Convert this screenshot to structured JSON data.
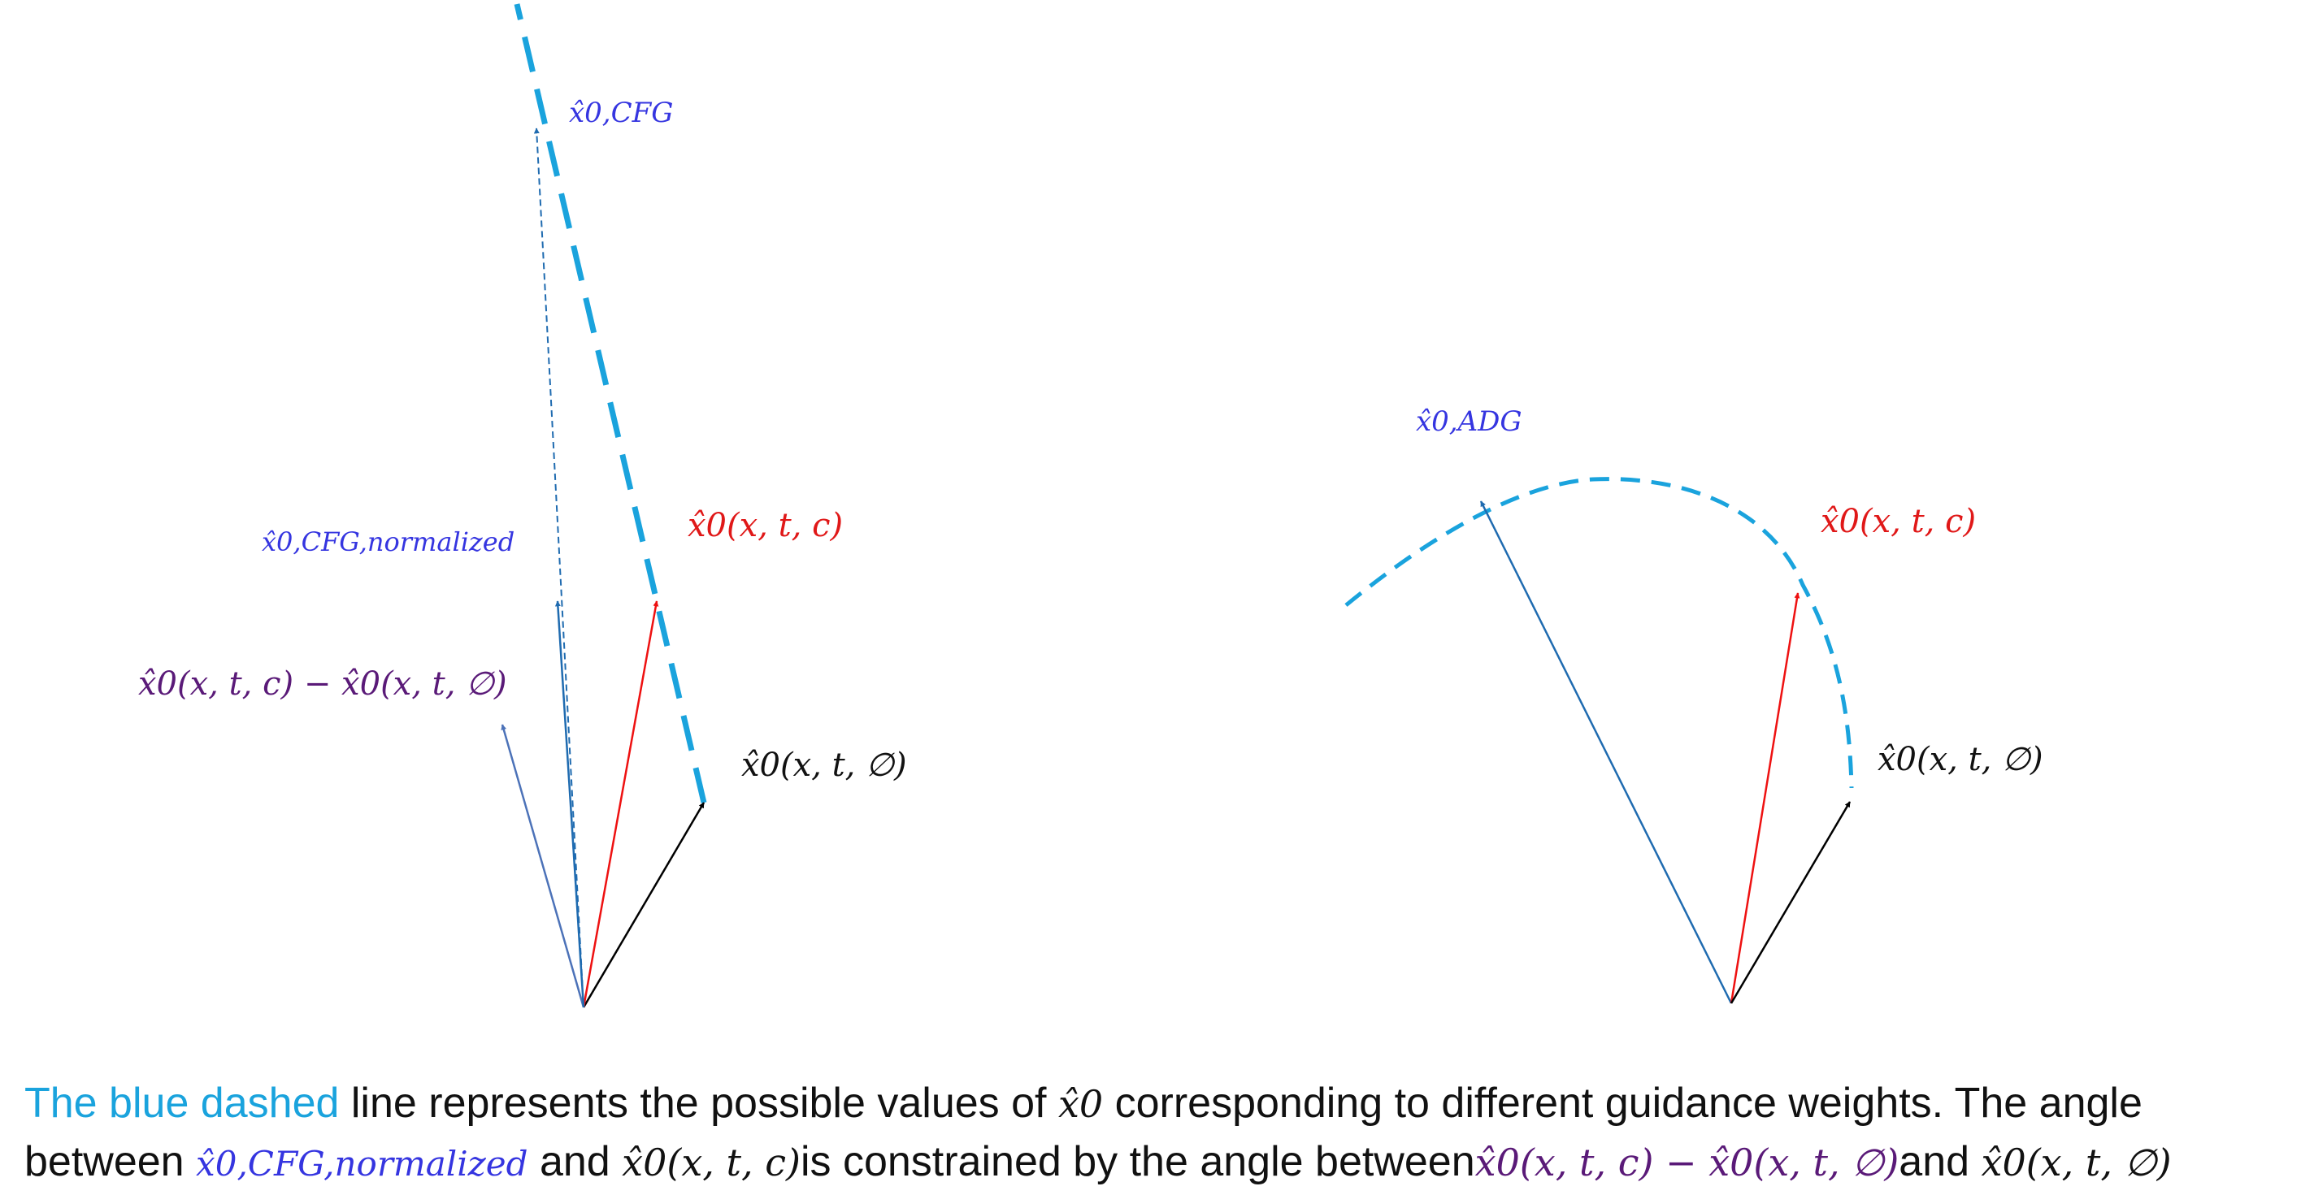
{
  "colors": {
    "cyan_dashed": "#1aa3dd",
    "blue_arrow": "#1f6bb0",
    "red_arrow": "#ee1111",
    "black_arrow": "#000000",
    "purple_arrow": "#4c72b8",
    "label_blue": "#3535e0",
    "label_red": "#e01818",
    "label_purple": "#5a1a78"
  },
  "left_panel": {
    "labels": {
      "cfg": "x̂0,CFG",
      "cfg_normalized": "x̂0,CFG,normalized",
      "conditional": "x̂0(x, t, c)",
      "difference": "x̂0(x, t, c) − x̂0(x, t, ∅)",
      "unconditional": "x̂0(x, t, ∅)"
    }
  },
  "right_panel": {
    "labels": {
      "adg": "x̂0,ADG",
      "conditional": "x̂0(x, t, c)",
      "unconditional": "x̂0(x, t, ∅)"
    }
  },
  "caption": {
    "line1_blue": "The blue dashed",
    "line1_rest_a": " line represents the possible values of ",
    "line1_sym": "x̂0",
    "line1_rest_b": " corresponding to different guidance weights. The angle",
    "line2_a": "between ",
    "line2_sym_blue": "x̂0,CFG,normalized",
    "line2_b": " and ",
    "line2_sym_c": "x̂0(x, t, c)",
    "line2_c": "is constrained by the angle between",
    "line2_sym_purple": "x̂0(x, t, c) − x̂0(x, t, ∅)",
    "line2_d": "and ",
    "line2_sym_null": "x̂0(x, t, ∅)"
  }
}
